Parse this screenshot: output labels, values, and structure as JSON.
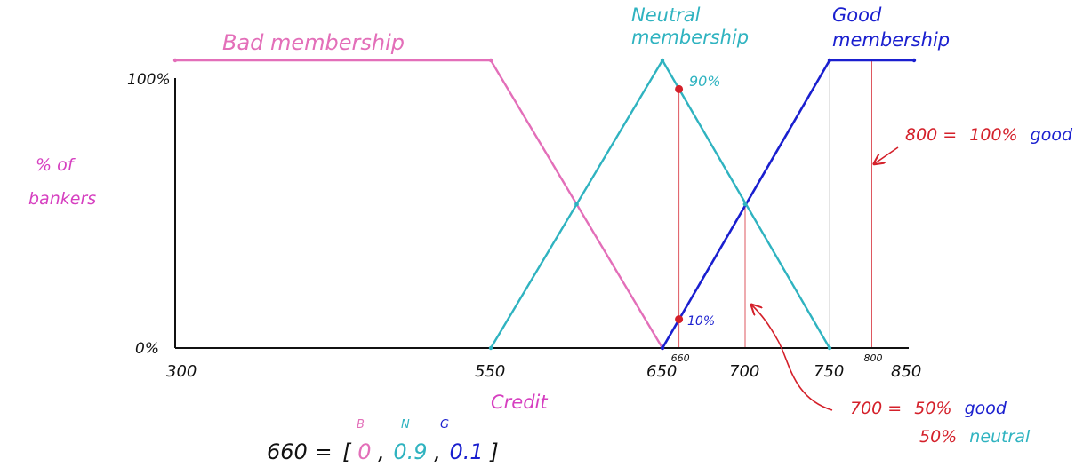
{
  "colors": {
    "bad": "#e36fb9",
    "neutral": "#2fb3c0",
    "good": "#1a1fcf",
    "annot": "#d4202a",
    "label": "#d63fc0",
    "axis": "#111111",
    "gridline": "#c9c9c9"
  },
  "labels": {
    "bad_title": "Bad membership",
    "neutral_title_1": "Neutral",
    "neutral_title_2": "membership",
    "good_title_1": "Good",
    "good_title_2": "membership",
    "ylabel_1": "% of",
    "ylabel_2": "bankers",
    "xlabel": "Credit",
    "y_top": "100%",
    "y_bottom": "0%",
    "ann_90": "90%",
    "ann_10": "10%",
    "ann_800_value": "800 =",
    "ann_800_pct": "100%",
    "ann_800_word": "good",
    "ann_700_value": "700 =",
    "ann_700_pct1": "50%",
    "ann_700_word1": "good",
    "ann_700_pct2": "50%",
    "ann_700_word2": "neutral",
    "vec_lhs": "660 =",
    "vec_open": "[",
    "vec_close": "]",
    "vec_b_letter": "B",
    "vec_n_letter": "N",
    "vec_g_letter": "G",
    "vec_b_val": "0",
    "vec_n_val": "0.9",
    "vec_g_val": "0.1",
    "vec_comma": ","
  },
  "chart_data": {
    "type": "line",
    "xlabel": "Credit",
    "ylabel": "% of bankers",
    "ylim": [
      0,
      100
    ],
    "ticks": [
      {
        "value": 300,
        "label": "300"
      },
      {
        "value": 550,
        "label": "550"
      },
      {
        "value": 650,
        "label": "650"
      },
      {
        "value": 700,
        "label": "700"
      },
      {
        "value": 750,
        "label": "750"
      },
      {
        "value": 850,
        "label": "850"
      }
    ],
    "small_ticks": [
      {
        "value": 660,
        "label": "660"
      },
      {
        "value": 800,
        "label": "800"
      }
    ],
    "series": [
      {
        "name": "Bad membership",
        "color_key": "bad",
        "points": [
          [
            300,
            100
          ],
          [
            550,
            100
          ],
          [
            650,
            0
          ]
        ]
      },
      {
        "name": "Neutral membership",
        "color_key": "neutral",
        "points": [
          [
            550,
            0
          ],
          [
            650,
            100
          ],
          [
            750,
            0
          ]
        ]
      },
      {
        "name": "Good membership",
        "color_key": "good",
        "points": [
          [
            650,
            0
          ],
          [
            750,
            100
          ],
          [
            850,
            100
          ]
        ]
      }
    ],
    "markers": [
      {
        "x": 660,
        "y": 90
      },
      {
        "x": 660,
        "y": 10
      }
    ],
    "ref_lines": [
      660,
      700,
      800
    ]
  }
}
